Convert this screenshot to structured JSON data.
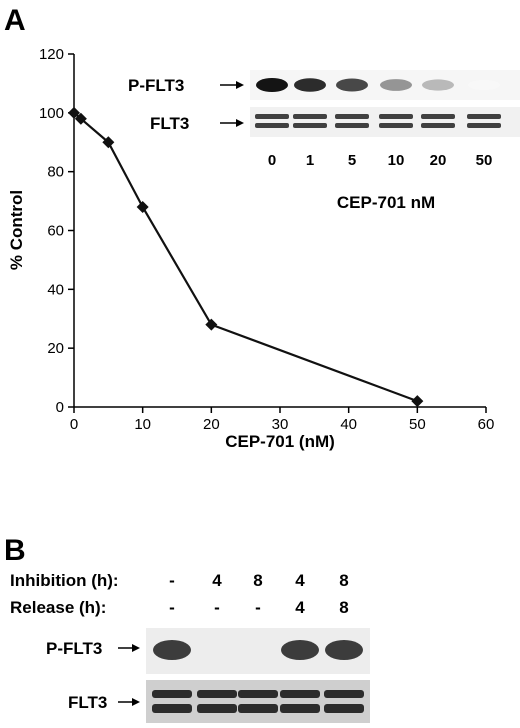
{
  "panel_a_label": "A",
  "panel_b_label": "B",
  "chart_data": {
    "type": "line",
    "title": "",
    "xlabel": "CEP-701 (nM)",
    "ylabel": "% Control",
    "xlim": [
      0,
      60
    ],
    "ylim": [
      0,
      120
    ],
    "xticks": [
      0,
      10,
      20,
      30,
      40,
      50,
      60
    ],
    "yticks": [
      0,
      20,
      40,
      60,
      80,
      100,
      120
    ],
    "grid": false,
    "marker": "diamond",
    "series": [
      {
        "x": [
          0,
          1,
          5,
          10,
          20,
          50
        ],
        "y": [
          100,
          98,
          90,
          68,
          28,
          2
        ]
      }
    ]
  },
  "inset_blot": {
    "row_labels": [
      "P-FLT3",
      "FLT3"
    ],
    "lanes": [
      "0",
      "1",
      "5",
      "10",
      "20",
      "50"
    ],
    "caption": "CEP-701 nM",
    "pflt3_intensity": [
      1.0,
      0.9,
      0.78,
      0.45,
      0.3,
      0.03
    ],
    "flt3_intensity": [
      0.85,
      0.85,
      0.85,
      0.85,
      0.85,
      0.85
    ]
  },
  "blot_b": {
    "conditions": [
      {
        "label": "Inhibition (h):",
        "values": [
          "-",
          "4",
          "8",
          "4",
          "8"
        ]
      },
      {
        "label": "Release (h):",
        "values": [
          "-",
          "-",
          "-",
          "4",
          "8"
        ]
      }
    ],
    "row_labels": [
      "P-FLT3",
      "FLT3"
    ],
    "pflt3_intensity": [
      0.85,
      0.0,
      0.0,
      0.85,
      0.85
    ],
    "flt3_intensity": [
      0.9,
      0.9,
      0.9,
      0.9,
      0.9
    ]
  }
}
